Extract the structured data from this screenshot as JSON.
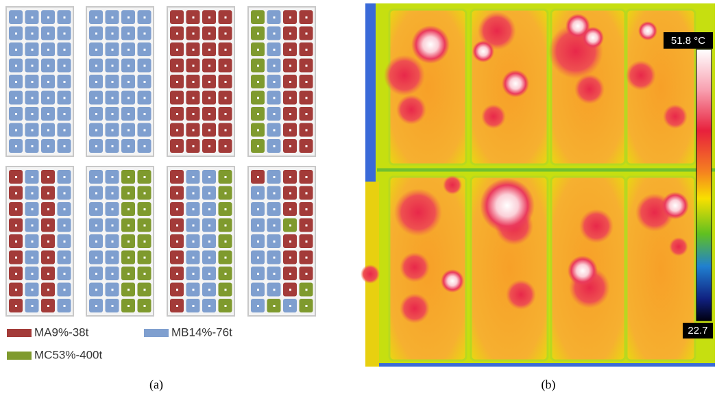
{
  "legend": [
    {
      "label": "MA9%-38t",
      "color": "#a33b39"
    },
    {
      "label": "MB14%-76t",
      "color": "#7f9fcf"
    },
    {
      "label": "MC53%-400t",
      "color": "#7f9a2e"
    }
  ],
  "colorbar": {
    "max_label": "51.8 °C",
    "min_label": "22.7"
  },
  "captions": [
    "(a)",
    "(b)"
  ]
}
